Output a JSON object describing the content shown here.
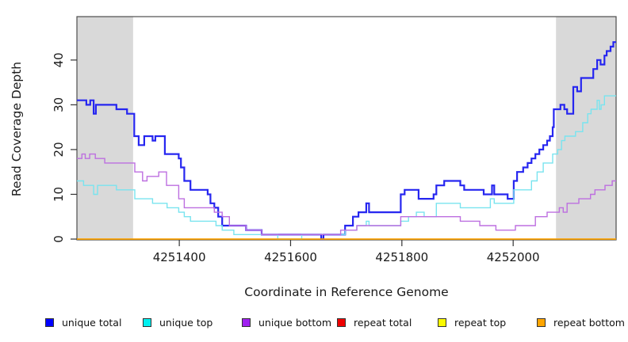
{
  "figure": {
    "y_axis_title": "Read Coverage Depth",
    "x_axis_title": "Coordinate in Reference Genome"
  },
  "legend": {
    "items": [
      {
        "label": "unique total",
        "color": "#0000ff"
      },
      {
        "label": "unique top",
        "color": "#00f0f0"
      },
      {
        "label": "unique bottom",
        "color": "#a020f0"
      },
      {
        "label": "repeat total",
        "color": "#ee0000"
      },
      {
        "label": "repeat top",
        "color": "#fafa00"
      },
      {
        "label": "repeat bottom",
        "color": "#ffa500"
      }
    ]
  },
  "chart_data": {
    "type": "line",
    "subtype": "step-after",
    "title": "",
    "xlabel": "Coordinate in Reference Genome",
    "ylabel": "Read Coverage Depth",
    "x_range": [
      4251216,
      4252185
    ],
    "y_range": [
      0,
      49.7
    ],
    "x_ticks": {
      "values": [
        4251400,
        4251600,
        4251800,
        4252000
      ],
      "labels": [
        "4251400",
        "4251600",
        "4251800",
        "4252000"
      ]
    },
    "y_ticks": {
      "values": [
        0,
        10,
        20,
        30,
        40
      ],
      "labels": [
        "0",
        "10",
        "20",
        "30",
        "40"
      ]
    },
    "grid": false,
    "legend_position": "bottom",
    "highlight_regions": [
      {
        "x0": 4251216,
        "x1": 4251317,
        "color": "#d9d9d9"
      },
      {
        "x0": 4252077,
        "x1": 4252185,
        "color": "#d9d9d9"
      }
    ],
    "series": [
      {
        "name": "unique total",
        "color": "#2626f0",
        "width": 2.2,
        "points": [
          [
            4251216,
            31
          ],
          [
            4251233,
            30
          ],
          [
            4251240,
            31
          ],
          [
            4251246,
            28
          ],
          [
            4251250,
            30
          ],
          [
            4251287,
            29
          ],
          [
            4251306,
            28
          ],
          [
            4251319,
            23
          ],
          [
            4251327,
            21
          ],
          [
            4251337,
            23
          ],
          [
            4251352,
            22
          ],
          [
            4251357,
            23
          ],
          [
            4251374,
            19
          ],
          [
            4251399,
            18
          ],
          [
            4251403,
            16
          ],
          [
            4251409,
            13
          ],
          [
            4251420,
            11
          ],
          [
            4251451,
            10
          ],
          [
            4251456,
            8
          ],
          [
            4251463,
            7
          ],
          [
            4251470,
            5
          ],
          [
            4251477,
            3
          ],
          [
            4251520,
            2
          ],
          [
            4251548,
            1
          ],
          [
            4251655,
            0
          ],
          [
            4251659,
            1
          ],
          [
            4251698,
            3
          ],
          [
            4251712,
            5
          ],
          [
            4251722,
            6
          ],
          [
            4251736,
            8
          ],
          [
            4251741,
            6
          ],
          [
            4251798,
            10
          ],
          [
            4251805,
            11
          ],
          [
            4251830,
            9
          ],
          [
            4251857,
            10
          ],
          [
            4251862,
            12
          ],
          [
            4251876,
            13
          ],
          [
            4251905,
            12
          ],
          [
            4251912,
            11
          ],
          [
            4251947,
            10
          ],
          [
            4251962,
            12
          ],
          [
            4251966,
            10
          ],
          [
            4251990,
            9
          ],
          [
            4252001,
            13
          ],
          [
            4252007,
            15
          ],
          [
            4252018,
            16
          ],
          [
            4252026,
            17
          ],
          [
            4252033,
            18
          ],
          [
            4252040,
            19
          ],
          [
            4252047,
            20
          ],
          [
            4252054,
            21
          ],
          [
            4252061,
            22
          ],
          [
            4252066,
            23
          ],
          [
            4252071,
            25
          ],
          [
            4252073,
            29
          ],
          [
            4252085,
            30
          ],
          [
            4252092,
            29
          ],
          [
            4252097,
            28
          ],
          [
            4252108,
            34
          ],
          [
            4252115,
            33
          ],
          [
            4252122,
            36
          ],
          [
            4252144,
            38
          ],
          [
            4252151,
            40
          ],
          [
            4252157,
            39
          ],
          [
            4252164,
            41
          ],
          [
            4252168,
            42
          ],
          [
            4252175,
            43
          ],
          [
            4252180,
            44
          ]
        ]
      },
      {
        "name": "unique top",
        "color": "#79e4ef",
        "width": 1.4,
        "points": [
          [
            4251216,
            13
          ],
          [
            4251228,
            12
          ],
          [
            4251246,
            10
          ],
          [
            4251253,
            12
          ],
          [
            4251287,
            11
          ],
          [
            4251320,
            9
          ],
          [
            4251352,
            8
          ],
          [
            4251378,
            7
          ],
          [
            4251399,
            6
          ],
          [
            4251409,
            5
          ],
          [
            4251420,
            4
          ],
          [
            4251466,
            3
          ],
          [
            4251477,
            2
          ],
          [
            4251498,
            1
          ],
          [
            4251577,
            0
          ],
          [
            4251620,
            1
          ],
          [
            4251698,
            2
          ],
          [
            4251719,
            3
          ],
          [
            4251736,
            4
          ],
          [
            4251741,
            3
          ],
          [
            4251798,
            4
          ],
          [
            4251812,
            5
          ],
          [
            4251826,
            6
          ],
          [
            4251840,
            5
          ],
          [
            4251862,
            8
          ],
          [
            4251905,
            7
          ],
          [
            4251959,
            9
          ],
          [
            4251966,
            8
          ],
          [
            4252001,
            11
          ],
          [
            4252033,
            13
          ],
          [
            4252043,
            15
          ],
          [
            4252054,
            17
          ],
          [
            4252071,
            19
          ],
          [
            4252080,
            20
          ],
          [
            4252087,
            22
          ],
          [
            4252093,
            23
          ],
          [
            4252112,
            24
          ],
          [
            4252125,
            26
          ],
          [
            4252134,
            28
          ],
          [
            4252140,
            29
          ],
          [
            4252151,
            31
          ],
          [
            4252155,
            29
          ],
          [
            4252158,
            30
          ],
          [
            4252164,
            32
          ]
        ]
      },
      {
        "name": "unique bottom",
        "color": "#bd6fe0",
        "width": 1.4,
        "points": [
          [
            4251216,
            18
          ],
          [
            4251225,
            19
          ],
          [
            4251231,
            18
          ],
          [
            4251239,
            19
          ],
          [
            4251249,
            18
          ],
          [
            4251266,
            17
          ],
          [
            4251320,
            15
          ],
          [
            4251334,
            13
          ],
          [
            4251342,
            14
          ],
          [
            4251363,
            15
          ],
          [
            4251377,
            12
          ],
          [
            4251399,
            9
          ],
          [
            4251409,
            7
          ],
          [
            4251463,
            6
          ],
          [
            4251477,
            5
          ],
          [
            4251490,
            3
          ],
          [
            4251520,
            2
          ],
          [
            4251548,
            1
          ],
          [
            4251690,
            2
          ],
          [
            4251719,
            3
          ],
          [
            4251798,
            5
          ],
          [
            4251905,
            4
          ],
          [
            4251940,
            3
          ],
          [
            4251969,
            2
          ],
          [
            4252004,
            3
          ],
          [
            4252040,
            5
          ],
          [
            4252061,
            6
          ],
          [
            4252083,
            7
          ],
          [
            4252090,
            6
          ],
          [
            4252097,
            8
          ],
          [
            4252118,
            9
          ],
          [
            4252139,
            10
          ],
          [
            4252147,
            11
          ],
          [
            4252165,
            12
          ],
          [
            4252178,
            13
          ]
        ]
      },
      {
        "name": "repeat total",
        "color": "#dd0000",
        "width": 1.2,
        "points": [
          [
            4251216,
            0
          ]
        ]
      },
      {
        "name": "repeat top",
        "color": "#f0f000",
        "width": 1.2,
        "points": [
          [
            4251216,
            0
          ]
        ]
      },
      {
        "name": "repeat bottom",
        "color": "#ffa500",
        "width": 1.6,
        "points": [
          [
            4251216,
            0
          ]
        ]
      }
    ]
  }
}
